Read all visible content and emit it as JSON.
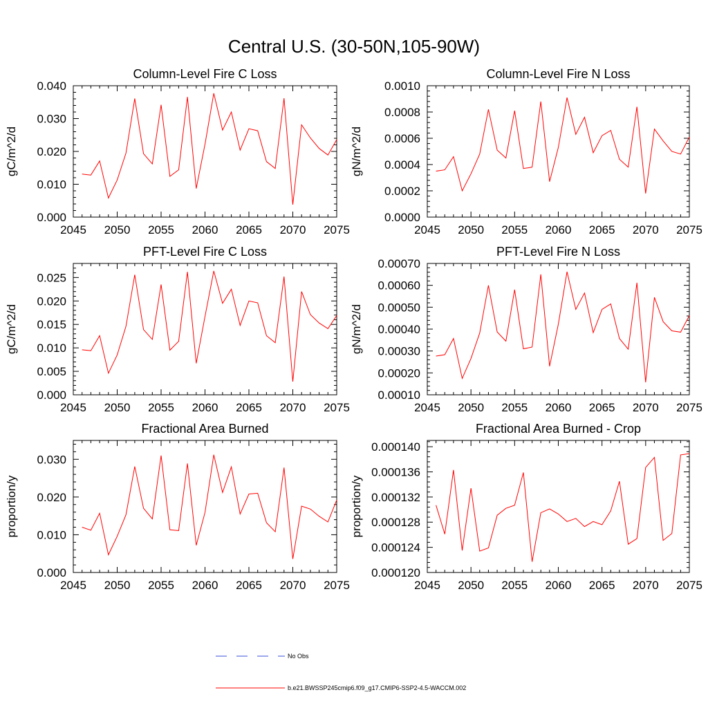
{
  "figure": {
    "title": "Central U.S. (30-50N,105-90W)"
  },
  "legend": [
    {
      "label": "No Obs",
      "color": "#3b4fd8",
      "style": "dashed"
    },
    {
      "label": "b.e21.BWSSP245cmip6.f09_g17.CMIP6-SSP2-4.5-WACCM.002",
      "color": "#ff0000",
      "style": "solid"
    }
  ],
  "chart_data": [
    {
      "type": "line",
      "title": "Column-Level Fire C Loss",
      "ylabel": "gC/m^2/d",
      "xlim": [
        2045,
        2075
      ],
      "ylim": [
        0,
        0.04
      ],
      "x_ticks": [
        "2045",
        "2050",
        "2055",
        "2060",
        "2065",
        "2070",
        "2075"
      ],
      "y_ticks": [
        "0.000",
        "0.010",
        "0.020",
        "0.030",
        "0.040"
      ],
      "color": "#ff0000",
      "x": [
        2046,
        2047,
        2048,
        2049,
        2050,
        2051,
        2052,
        2053,
        2054,
        2055,
        2056,
        2057,
        2058,
        2059,
        2060,
        2061,
        2062,
        2063,
        2064,
        2065,
        2066,
        2067,
        2068,
        2069,
        2070,
        2071,
        2072,
        2073,
        2074,
        2075
      ],
      "y": [
        0.0131,
        0.0128,
        0.0171,
        0.0058,
        0.0113,
        0.0195,
        0.0361,
        0.0193,
        0.0162,
        0.0342,
        0.0124,
        0.0144,
        0.0366,
        0.0087,
        0.0222,
        0.0377,
        0.0265,
        0.032,
        0.0204,
        0.0269,
        0.0263,
        0.0169,
        0.0148,
        0.0362,
        0.0038,
        0.0281,
        0.0241,
        0.0209,
        0.0189,
        0.0236
      ]
    },
    {
      "type": "line",
      "title": "Column-Level Fire N Loss",
      "ylabel": "gN/m^2/d",
      "xlim": [
        2045,
        2075
      ],
      "ylim": [
        0,
        0.001
      ],
      "x_ticks": [
        "2045",
        "2050",
        "2055",
        "2060",
        "2065",
        "2070",
        "2075"
      ],
      "y_ticks": [
        "0.0000",
        "0.0002",
        "0.0004",
        "0.0006",
        "0.0008",
        "0.0010"
      ],
      "color": "#ff0000",
      "x": [
        2046,
        2047,
        2048,
        2049,
        2050,
        2051,
        2052,
        2053,
        2054,
        2055,
        2056,
        2057,
        2058,
        2059,
        2060,
        2061,
        2062,
        2063,
        2064,
        2065,
        2066,
        2067,
        2068,
        2069,
        2070,
        2071,
        2072,
        2073,
        2074,
        2075
      ],
      "y": [
        0.00035,
        0.00036,
        0.00046,
        0.0002,
        0.00033,
        0.00048,
        0.00082,
        0.00051,
        0.00045,
        0.00081,
        0.00037,
        0.00038,
        0.00088,
        0.00027,
        0.00053,
        0.00091,
        0.00063,
        0.00076,
        0.00049,
        0.00062,
        0.00066,
        0.00044,
        0.00038,
        0.00084,
        0.00018,
        0.00067,
        0.00058,
        0.0005,
        0.00048,
        0.00061
      ]
    },
    {
      "type": "line",
      "title": "PFT-Level Fire C Loss",
      "ylabel": "gC/m^2/d",
      "xlim": [
        2045,
        2075
      ],
      "ylim": [
        0,
        0.028
      ],
      "x_ticks": [
        "2045",
        "2050",
        "2055",
        "2060",
        "2065",
        "2070",
        "2075"
      ],
      "y_ticks": [
        "0.000",
        "0.005",
        "0.010",
        "0.015",
        "0.020",
        "0.025"
      ],
      "color": "#ff0000",
      "x": [
        2046,
        2047,
        2048,
        2049,
        2050,
        2051,
        2052,
        2053,
        2054,
        2055,
        2056,
        2057,
        2058,
        2059,
        2060,
        2061,
        2062,
        2063,
        2064,
        2065,
        2066,
        2067,
        2068,
        2069,
        2070,
        2071,
        2072,
        2073,
        2074,
        2075
      ],
      "y": [
        0.0096,
        0.0094,
        0.0126,
        0.0046,
        0.0085,
        0.0146,
        0.0256,
        0.0139,
        0.0118,
        0.0235,
        0.0095,
        0.0114,
        0.0262,
        0.0067,
        0.0167,
        0.0264,
        0.0195,
        0.0225,
        0.0148,
        0.02,
        0.0196,
        0.0126,
        0.0111,
        0.0252,
        0.0028,
        0.022,
        0.0171,
        0.0153,
        0.0141,
        0.0169
      ]
    },
    {
      "type": "line",
      "title": "PFT-Level Fire N Loss",
      "ylabel": "gN/m^2/d",
      "xlim": [
        2045,
        2075
      ],
      "ylim": [
        0.0001,
        0.0007
      ],
      "x_ticks": [
        "2045",
        "2050",
        "2055",
        "2060",
        "2065",
        "2070",
        "2075"
      ],
      "y_ticks": [
        "0.00010",
        "0.00020",
        "0.00030",
        "0.00040",
        "0.00050",
        "0.00060",
        "0.00070"
      ],
      "color": "#ff0000",
      "x": [
        2046,
        2047,
        2048,
        2049,
        2050,
        2051,
        2052,
        2053,
        2054,
        2055,
        2056,
        2057,
        2058,
        2059,
        2060,
        2061,
        2062,
        2063,
        2064,
        2065,
        2066,
        2067,
        2068,
        2069,
        2070,
        2071,
        2072,
        2073,
        2074,
        2075
      ],
      "y": [
        0.000277,
        0.000283,
        0.000357,
        0.000175,
        0.000266,
        0.000382,
        0.0006,
        0.000387,
        0.000345,
        0.00058,
        0.00031,
        0.000318,
        0.00065,
        0.00023,
        0.000422,
        0.000662,
        0.00049,
        0.000565,
        0.000384,
        0.00049,
        0.000515,
        0.000357,
        0.000308,
        0.000612,
        0.000157,
        0.000545,
        0.000434,
        0.000392,
        0.000386,
        0.000462
      ]
    },
    {
      "type": "line",
      "title": "Fractional Area Burned",
      "ylabel": "proportion/y",
      "xlim": [
        2045,
        2075
      ],
      "ylim": [
        0,
        0.035
      ],
      "x_ticks": [
        "2045",
        "2050",
        "2055",
        "2060",
        "2065",
        "2070",
        "2075"
      ],
      "y_ticks": [
        "0.000",
        "0.010",
        "0.020",
        "0.030"
      ],
      "color": "#ff0000",
      "x": [
        2046,
        2047,
        2048,
        2049,
        2050,
        2051,
        2052,
        2053,
        2054,
        2055,
        2056,
        2057,
        2058,
        2059,
        2060,
        2061,
        2062,
        2063,
        2064,
        2065,
        2066,
        2067,
        2068,
        2069,
        2070,
        2071,
        2072,
        2073,
        2074,
        2075
      ],
      "y": [
        0.012,
        0.0112,
        0.0157,
        0.0047,
        0.0096,
        0.0153,
        0.0281,
        0.017,
        0.0142,
        0.031,
        0.0113,
        0.0111,
        0.0289,
        0.0072,
        0.0159,
        0.0312,
        0.0212,
        0.028,
        0.0155,
        0.0208,
        0.021,
        0.0132,
        0.0108,
        0.0278,
        0.0036,
        0.0176,
        0.0168,
        0.0149,
        0.0134,
        0.0192
      ]
    },
    {
      "type": "line",
      "title": "Fractional Area Burned - Crop",
      "ylabel": "proportion/y",
      "xlim": [
        2045,
        2075
      ],
      "ylim": [
        0.00012,
        0.000141
      ],
      "x_ticks": [
        "2045",
        "2050",
        "2055",
        "2060",
        "2065",
        "2070",
        "2075"
      ],
      "y_ticks": [
        "0.000120",
        "0.000124",
        "0.000128",
        "0.000132",
        "0.000136",
        "0.000140"
      ],
      "color": "#ff0000",
      "x": [
        2046,
        2047,
        2048,
        2049,
        2050,
        2051,
        2052,
        2053,
        2054,
        2055,
        2056,
        2057,
        2058,
        2059,
        2060,
        2061,
        2062,
        2063,
        2064,
        2065,
        2066,
        2067,
        2068,
        2069,
        2070,
        2071,
        2072,
        2073,
        2074,
        2075
      ],
      "y": [
        0.0001307,
        0.0001261,
        0.0001363,
        0.0001235,
        0.0001334,
        0.0001234,
        0.0001239,
        0.0001291,
        0.0001302,
        0.0001307,
        0.0001359,
        0.0001217,
        0.0001295,
        0.0001301,
        0.0001293,
        0.0001281,
        0.0001286,
        0.0001273,
        0.0001281,
        0.0001276,
        0.0001298,
        0.0001345,
        0.0001245,
        0.0001254,
        0.0001367,
        0.0001383,
        0.0001251,
        0.0001262,
        0.0001387,
        0.0001389
      ]
    }
  ]
}
